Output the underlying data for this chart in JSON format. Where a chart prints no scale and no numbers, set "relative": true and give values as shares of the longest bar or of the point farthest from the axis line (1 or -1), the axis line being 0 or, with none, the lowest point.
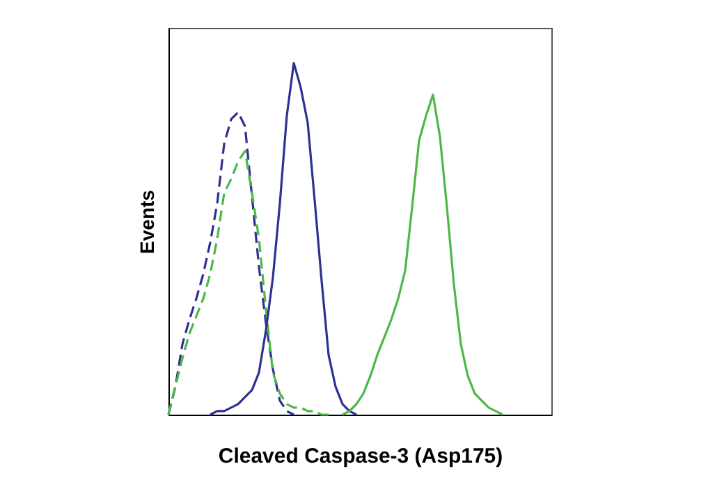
{
  "chart_data": {
    "type": "line",
    "relative": true,
    "xlabel": "Cleaved Caspase-3 (Asp175)",
    "ylabel": "Events",
    "categories": [
      null,
      null,
      null,
      null,
      null,
      null,
      null,
      null,
      null,
      null,
      null,
      null,
      null,
      null,
      null,
      null,
      null,
      null,
      null,
      null,
      null,
      null,
      null,
      null,
      null,
      null,
      null,
      null,
      null,
      null,
      null,
      null,
      null,
      null,
      null,
      null,
      null,
      null,
      null,
      null,
      null,
      null,
      null,
      null,
      null,
      null,
      null,
      null,
      null,
      null,
      null,
      null,
      null,
      null,
      null,
      null
    ],
    "series": [
      {
        "color": "#2e3192",
        "line_style": "dashed",
        "values": [
          0,
          0.08,
          0.2,
          0.27,
          0.33,
          0.4,
          0.49,
          0.6,
          0.77,
          0.84,
          0.86,
          0.82,
          0.62,
          0.42,
          0.26,
          0.13,
          0.04,
          0.01,
          0,
          null,
          null,
          null,
          null,
          null,
          null,
          null,
          null,
          null,
          null,
          null,
          null,
          null,
          null,
          null,
          null,
          null,
          null,
          null,
          null,
          null,
          null,
          null,
          null,
          null,
          null,
          null,
          null,
          null,
          null,
          null,
          null,
          null,
          null,
          null,
          null,
          null
        ]
      },
      {
        "color": "#4cb848",
        "line_style": "dashed",
        "values": [
          0,
          0.08,
          0.16,
          0.23,
          0.28,
          0.33,
          0.4,
          0.5,
          0.63,
          0.67,
          0.72,
          0.75,
          0.63,
          0.5,
          0.3,
          0.12,
          0.06,
          0.03,
          0.02,
          0.02,
          0.01,
          0.01,
          0,
          0,
          null,
          null,
          null,
          null,
          null,
          null,
          null,
          null,
          null,
          null,
          null,
          null,
          null,
          null,
          null,
          null,
          null,
          null,
          null,
          null,
          null,
          null,
          null,
          null,
          null,
          null,
          null,
          null,
          null,
          null,
          null,
          null
        ]
      },
      {
        "color": "#2e3192",
        "line_style": "solid",
        "values": [
          null,
          null,
          null,
          null,
          null,
          null,
          0,
          0.01,
          0.01,
          0.02,
          0.03,
          0.05,
          0.07,
          0.12,
          0.24,
          0.39,
          0.6,
          0.85,
          1,
          0.93,
          0.83,
          0.61,
          0.38,
          0.17,
          0.08,
          0.03,
          0.01,
          0,
          null,
          null,
          null,
          null,
          null,
          null,
          null,
          null,
          null,
          null,
          null,
          null,
          null,
          null,
          null,
          null,
          null,
          null,
          null,
          null,
          null,
          null,
          null,
          null,
          null,
          null,
          null,
          null
        ]
      },
      {
        "color": "#4cb848",
        "line_style": "solid",
        "values": [
          null,
          null,
          null,
          null,
          null,
          null,
          null,
          null,
          null,
          null,
          null,
          null,
          null,
          null,
          null,
          null,
          null,
          null,
          null,
          null,
          null,
          null,
          null,
          null,
          null,
          0,
          0.01,
          0.03,
          0.06,
          0.11,
          0.17,
          0.22,
          0.27,
          0.33,
          0.41,
          0.59,
          0.78,
          0.85,
          0.91,
          0.79,
          0.59,
          0.37,
          0.2,
          0.11,
          0.06,
          0.04,
          0.02,
          0.01,
          0,
          null,
          null,
          null,
          null,
          null,
          null,
          null
        ]
      }
    ]
  }
}
